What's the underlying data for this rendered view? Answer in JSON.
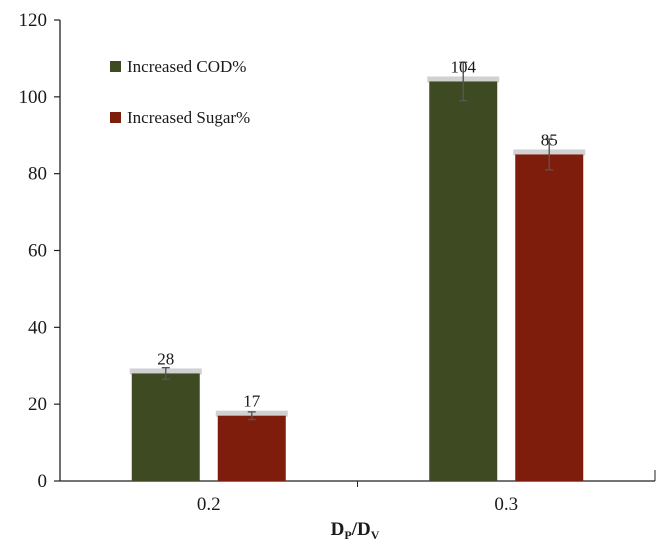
{
  "chart_data": {
    "type": "bar",
    "title": "",
    "categories": [
      "0.2",
      "0.3"
    ],
    "series": [
      {
        "name": "Increased COD%",
        "color": "#3e4a22",
        "values": [
          28,
          104
        ],
        "errors": [
          1.5,
          5
        ],
        "data_labels": [
          "28",
          "104"
        ]
      },
      {
        "name": "Increased Sugar%",
        "color": "#7e1d0c",
        "values": [
          17,
          85
        ],
        "errors": [
          1,
          4
        ],
        "data_labels": [
          "17",
          "85"
        ]
      }
    ],
    "xlabel": {
      "main1": "D",
      "sub1": "P",
      "slash": "/",
      "main2": "D",
      "sub2": "V"
    },
    "ylabel": "",
    "ylim": [
      0,
      120
    ],
    "yticks": [
      "0",
      "20",
      "40",
      "60",
      "80",
      "100",
      "120"
    ],
    "grid": false,
    "legend_position": "top-left"
  }
}
